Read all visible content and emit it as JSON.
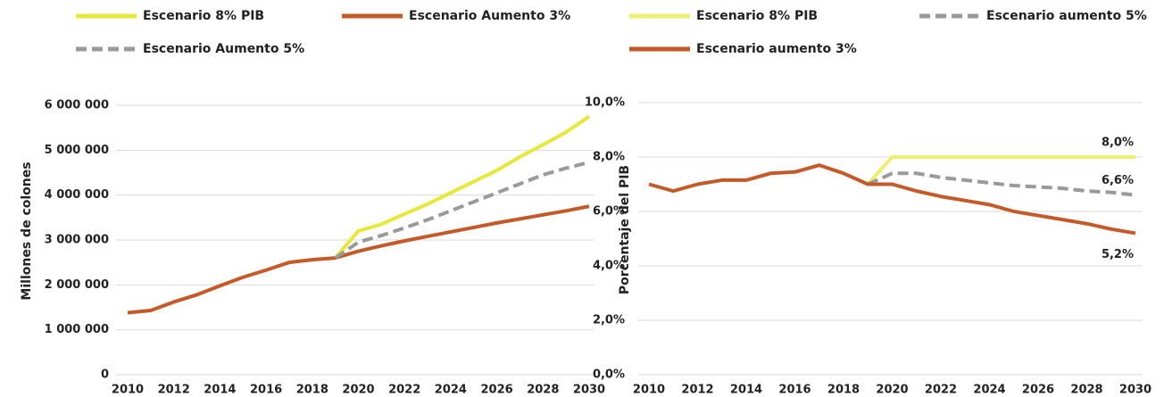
{
  "chart_data": [
    {
      "type": "line",
      "ylabel": "Millones de colones",
      "x": [
        2010,
        2011,
        2012,
        2013,
        2014,
        2015,
        2016,
        2017,
        2018,
        2019,
        2020,
        2021,
        2022,
        2023,
        2024,
        2025,
        2026,
        2027,
        2028,
        2029,
        2030
      ],
      "xlim": [
        2010,
        2030
      ],
      "xticks": [
        2010,
        2012,
        2014,
        2016,
        2018,
        2020,
        2022,
        2024,
        2026,
        2028,
        2030
      ],
      "ylim": [
        0,
        6000000
      ],
      "yticks": [
        {
          "value": 0,
          "label": "0"
        },
        {
          "value": 1000000,
          "label": "1 000 000"
        },
        {
          "value": 2000000,
          "label": "2 000 000"
        },
        {
          "value": 3000000,
          "label": "3 000 000"
        },
        {
          "value": 4000000,
          "label": "4 000 000"
        },
        {
          "value": 5000000,
          "label": "5 000 000"
        },
        {
          "value": 6000000,
          "label": "6 000 000"
        }
      ],
      "grid": true,
      "series": [
        {
          "name": "Escenario 8% PIB",
          "color": "#e6e83c",
          "dashed": false,
          "values": [
            null,
            null,
            null,
            null,
            null,
            null,
            null,
            null,
            null,
            2600000,
            3200000,
            3350000,
            3580000,
            3800000,
            4050000,
            4300000,
            4550000,
            4850000,
            5120000,
            5400000,
            5750000
          ]
        },
        {
          "name": "Escenario Aumento 3%",
          "color": "#c55a28",
          "dashed": false,
          "values": [
            1380000,
            1430000,
            1620000,
            1780000,
            1980000,
            2170000,
            2330000,
            2500000,
            2560000,
            2600000,
            2750000,
            2870000,
            2980000,
            3080000,
            3180000,
            3280000,
            3380000,
            3470000,
            3560000,
            3650000,
            3750000
          ]
        },
        {
          "name": "Escenario Aumento 5%",
          "color": "#9a9a9a",
          "dashed": true,
          "values": [
            null,
            null,
            null,
            null,
            null,
            null,
            null,
            null,
            null,
            2600000,
            2950000,
            3100000,
            3270000,
            3450000,
            3650000,
            3850000,
            4050000,
            4250000,
            4450000,
            4600000,
            4730000
          ]
        }
      ]
    },
    {
      "type": "line",
      "ylabel": "Porcentaje del PIB",
      "x": [
        2010,
        2011,
        2012,
        2013,
        2014,
        2015,
        2016,
        2017,
        2018,
        2019,
        2020,
        2021,
        2022,
        2023,
        2024,
        2025,
        2026,
        2027,
        2028,
        2029,
        2030
      ],
      "xlim": [
        2010,
        2030
      ],
      "xticks": [
        2010,
        2012,
        2014,
        2016,
        2018,
        2020,
        2022,
        2024,
        2026,
        2028,
        2030
      ],
      "ylim": [
        0,
        10
      ],
      "yticks": [
        {
          "value": 0,
          "label": "0,0%"
        },
        {
          "value": 2,
          "label": "2,0%"
        },
        {
          "value": 4,
          "label": "4,0%"
        },
        {
          "value": 6,
          "label": "6,0%"
        },
        {
          "value": 8,
          "label": "8,0%"
        },
        {
          "value": 10,
          "label": "10,0%"
        }
      ],
      "grid": true,
      "series": [
        {
          "name": "Escenario 8% PIB",
          "color": "#eeee70",
          "dashed": false,
          "values": [
            null,
            null,
            null,
            null,
            null,
            null,
            null,
            null,
            null,
            7.0,
            8.0,
            8.0,
            8.0,
            8.0,
            8.0,
            8.0,
            8.0,
            8.0,
            8.0,
            8.0,
            8.0
          ],
          "value_labels": [
            null,
            null,
            null,
            null,
            null,
            null,
            null,
            null,
            null,
            null,
            null,
            null,
            null,
            null,
            null,
            null,
            null,
            null,
            null,
            null,
            "8,0%"
          ]
        },
        {
          "name": "Escenario aumento 5%",
          "color": "#9a9a9a",
          "dashed": true,
          "values": [
            null,
            null,
            null,
            null,
            null,
            null,
            null,
            null,
            null,
            7.0,
            7.4,
            7.4,
            7.25,
            7.15,
            7.05,
            6.95,
            6.9,
            6.85,
            6.75,
            6.7,
            6.6
          ],
          "value_labels": [
            null,
            null,
            null,
            null,
            null,
            null,
            null,
            null,
            null,
            null,
            null,
            null,
            null,
            null,
            null,
            null,
            null,
            null,
            null,
            null,
            "6,6%"
          ]
        },
        {
          "name": "Escenario aumento 3%",
          "color": "#c55a28",
          "dashed": false,
          "values": [
            7.0,
            6.75,
            7.0,
            7.15,
            7.15,
            7.4,
            7.45,
            7.7,
            7.4,
            7.0,
            7.0,
            6.75,
            6.55,
            6.4,
            6.25,
            6.0,
            5.85,
            5.7,
            5.55,
            5.35,
            5.2
          ],
          "value_labels": [
            null,
            null,
            null,
            null,
            null,
            null,
            null,
            null,
            null,
            null,
            null,
            null,
            null,
            null,
            null,
            null,
            null,
            null,
            null,
            null,
            "5,2%"
          ]
        }
      ]
    }
  ]
}
